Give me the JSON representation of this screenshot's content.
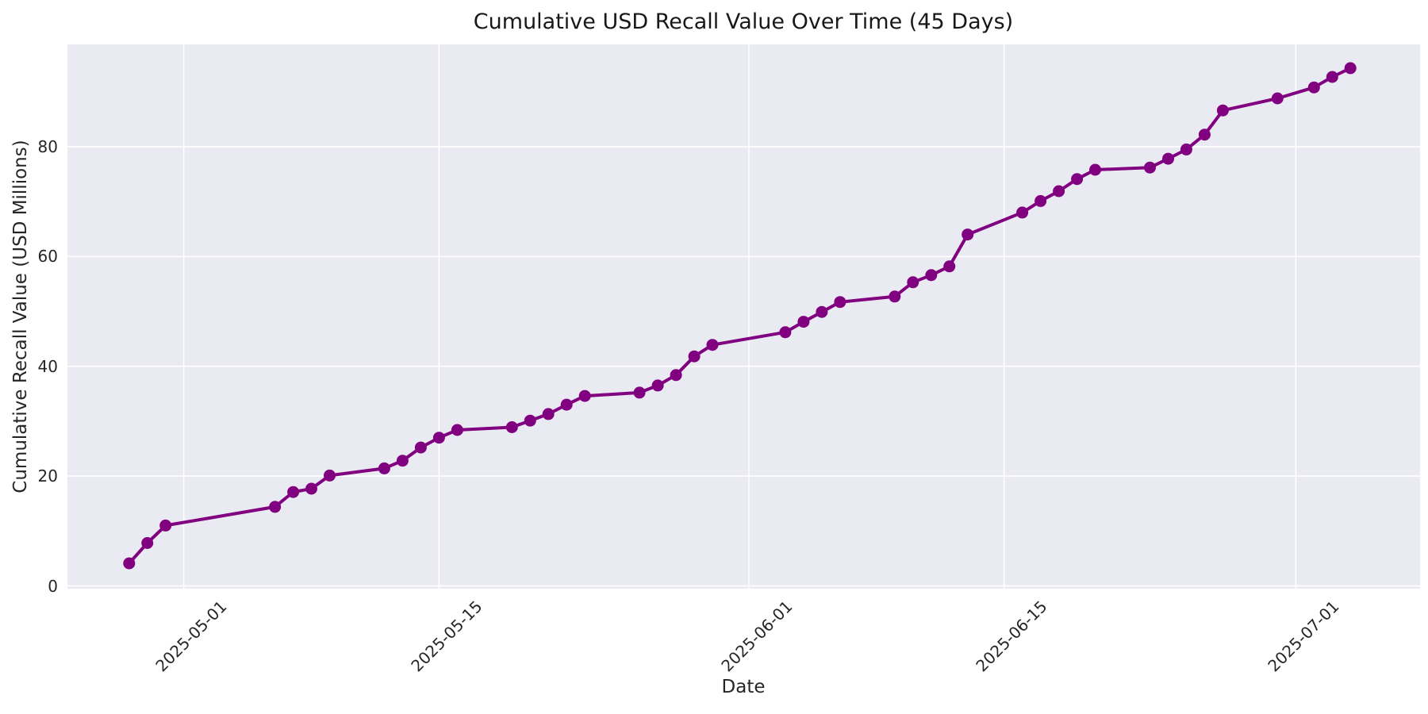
{
  "chart_data": {
    "type": "line",
    "title": "Cumulative USD Recall Value Over Time (45 Days)",
    "xlabel": "Date",
    "ylabel": "Cumulative Recall Value (USD Millions)",
    "legend_position": "none",
    "grid": true,
    "x_tick_labels": [
      "2025-05-01",
      "2025-05-15",
      "2025-06-01",
      "2025-06-15",
      "2025-07-01"
    ],
    "y_tick_labels": [
      0,
      20,
      40,
      60,
      80
    ],
    "ylim": [
      -0.5,
      98.6
    ],
    "xlim": [
      "2025-04-25",
      "2025-07-08"
    ],
    "colors": {
      "line": "#800080",
      "marker": "#800080",
      "axes_background": "#EAEAF2",
      "grid": "#FFFFFF",
      "figure_background": "#FFFFFF",
      "text": "#262626"
    },
    "series": [
      {
        "name": "cumulative_recall_value",
        "x": [
          "2025-04-28",
          "2025-04-29",
          "2025-04-30",
          "2025-05-06",
          "2025-05-07",
          "2025-05-08",
          "2025-05-09",
          "2025-05-12",
          "2025-05-13",
          "2025-05-14",
          "2025-05-15",
          "2025-05-16",
          "2025-05-19",
          "2025-05-20",
          "2025-05-21",
          "2025-05-22",
          "2025-05-23",
          "2025-05-26",
          "2025-05-27",
          "2025-05-28",
          "2025-05-29",
          "2025-05-30",
          "2025-06-03",
          "2025-06-04",
          "2025-06-05",
          "2025-06-06",
          "2025-06-09",
          "2025-06-10",
          "2025-06-11",
          "2025-06-12",
          "2025-06-13",
          "2025-06-16",
          "2025-06-17",
          "2025-06-18",
          "2025-06-19",
          "2025-06-20",
          "2025-06-23",
          "2025-06-24",
          "2025-06-25",
          "2025-06-26",
          "2025-06-27",
          "2025-06-30",
          "2025-07-02",
          "2025-07-03",
          "2025-07-04"
        ],
        "values": [
          4.1,
          7.8,
          11.0,
          14.4,
          17.1,
          17.7,
          20.1,
          21.4,
          22.8,
          25.2,
          27.0,
          28.4,
          28.9,
          30.1,
          31.3,
          33.0,
          34.6,
          35.2,
          36.5,
          38.4,
          41.8,
          43.9,
          46.2,
          48.1,
          49.9,
          51.7,
          52.7,
          55.3,
          56.6,
          58.2,
          64.0,
          68.0,
          70.1,
          71.9,
          74.1,
          75.8,
          76.2,
          77.8,
          79.5,
          82.2,
          86.6,
          88.8,
          90.8,
          92.7,
          94.3
        ]
      }
    ]
  }
}
